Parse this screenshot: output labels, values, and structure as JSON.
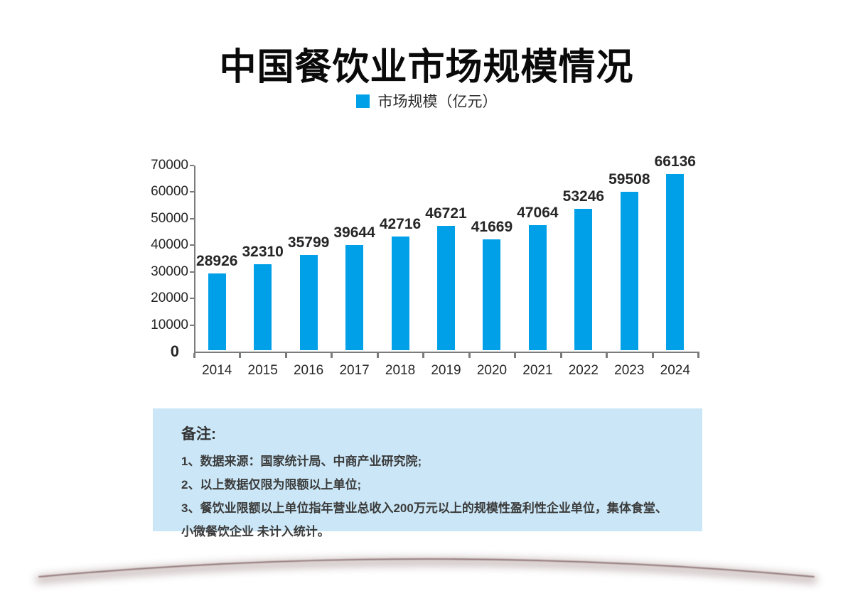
{
  "page": {
    "title": "中国餐饮业市场规模情况",
    "background_color": "#ffffff"
  },
  "legend": {
    "label": "市场规模（亿元）",
    "swatch_color": "#00A0E9"
  },
  "chart_data": {
    "type": "bar",
    "title": "中国餐饮业市场规模情况",
    "categories": [
      "2014",
      "2015",
      "2016",
      "2017",
      "2018",
      "2019",
      "2020",
      "2021",
      "2022",
      "2023",
      "2024"
    ],
    "series": [
      {
        "name": "市场规模（亿元）",
        "values": [
          28926,
          32310,
          35799,
          39644,
          42716,
          46721,
          41669,
          47064,
          53246,
          59508,
          66136
        ]
      }
    ],
    "xlabel": "",
    "ylabel": "",
    "ylim": [
      0,
      70000
    ],
    "yticks": [
      0,
      10000,
      20000,
      30000,
      40000,
      50000,
      60000,
      70000
    ],
    "bar_color": "#00A0E9",
    "value_labels": true,
    "grid": false,
    "legend_position": "top"
  },
  "notes": {
    "heading": "备注:",
    "items": [
      "1、数据来源：国家统计局、中商产业研究院;",
      "2、以上数据仅限为限额以上单位;",
      "3、餐饮业限额以上单位指年营业总收入200万元以上的规模性盈利性企业单位，集体食堂、小微餐饮企业 未计入统计。"
    ],
    "background_color": "#cbe7f7"
  },
  "footer": {
    "arc_color": "#6e4c4c"
  }
}
